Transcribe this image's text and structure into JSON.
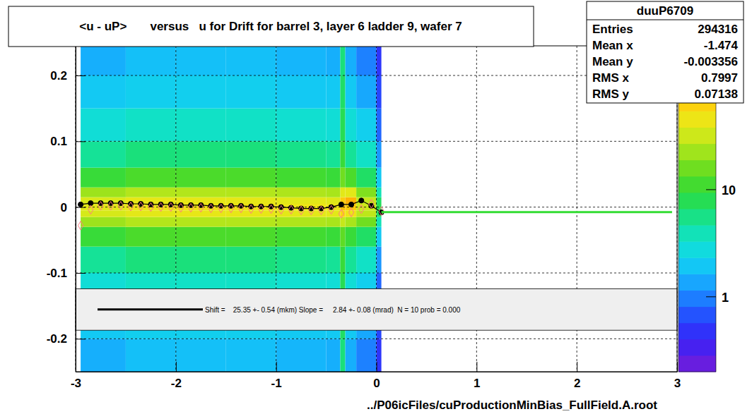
{
  "chart_data": {
    "type": "heatmap",
    "title": "<u - uP>       versus   u for Drift for barrel 3, layer 6 ladder 9, wafer 7",
    "x_label": "../P06icFiles/cuProductionMinBias_FullField.A.root",
    "xlim": [
      -3,
      3
    ],
    "ylim": [
      -0.25,
      0.245
    ],
    "xticks": [
      -3,
      -2,
      -1,
      0,
      1,
      2,
      3
    ],
    "yticks": [
      -0.2,
      -0.1,
      0,
      0.1,
      0.2
    ],
    "grid": true,
    "heatmap": {
      "x_edges": [
        -2.95,
        -2.5,
        -2,
        -1.5,
        -1,
        -0.5,
        -0.36,
        -0.31,
        -0.2,
        0,
        0.05
      ],
      "y_edges": [
        -0.25,
        -0.2,
        -0.15,
        -0.1,
        -0.06,
        -0.03,
        -0.015,
        -0.005,
        0.005,
        0.015,
        0.03,
        0.06,
        0.1,
        0.15,
        0.2,
        0.245
      ],
      "counts": [
        [
          1.5,
          2,
          3,
          5,
          10,
          22,
          35,
          40,
          36,
          22,
          10,
          5,
          3,
          2,
          1.5
        ],
        [
          1.8,
          2.2,
          3.5,
          6,
          12,
          26,
          40,
          46,
          42,
          26,
          12,
          6,
          3.5,
          2.2,
          1.8
        ],
        [
          1.8,
          2.2,
          3.5,
          6,
          12,
          26,
          42,
          48,
          42,
          26,
          12,
          6,
          3.5,
          2.2,
          1.8
        ],
        [
          1.8,
          2.2,
          3.5,
          6,
          12,
          26,
          42,
          48,
          42,
          26,
          12,
          6,
          3.5,
          2.2,
          1.8
        ],
        [
          1.6,
          2,
          3.2,
          5.5,
          11,
          25,
          40,
          46,
          40,
          25,
          11,
          5.5,
          3.2,
          2,
          1.6
        ],
        [
          1.5,
          2,
          3,
          5,
          10,
          24,
          40,
          45,
          38,
          24,
          10,
          5,
          3,
          2,
          1.5
        ],
        [
          6,
          7,
          8,
          10,
          14,
          30,
          60,
          80,
          70,
          40,
          16,
          10,
          8,
          7,
          6
        ],
        [
          1.5,
          2,
          3,
          5,
          10,
          24,
          45,
          70,
          90,
          40,
          12,
          5,
          3,
          2,
          1.5
        ],
        [
          1,
          1.4,
          2.2,
          3.5,
          7,
          16,
          28,
          32,
          30,
          18,
          7,
          3.5,
          2.2,
          1.4,
          1
        ],
        [
          0.5,
          0.6,
          0.8,
          1.2,
          2,
          4,
          7,
          8,
          7,
          4,
          2,
          1.2,
          0.8,
          0.6,
          0.5
        ]
      ],
      "colorbar_range": [
        0.2,
        220
      ],
      "log": true,
      "colorbar_ticks": [
        1,
        10
      ]
    },
    "series": [
      {
        "type": "line",
        "color": "#000000",
        "marker": "circle",
        "line_style": "solid",
        "x": [
          -2.95,
          -2.85,
          -2.75,
          -2.65,
          -2.55,
          -2.45,
          -2.35,
          -2.25,
          -2.15,
          -2.05,
          -1.95,
          -1.85,
          -1.75,
          -1.65,
          -1.55,
          -1.45,
          -1.35,
          -1.25,
          -1.15,
          -1.05,
          -0.95,
          -0.85,
          -0.75,
          -0.65,
          -0.55,
          -0.45,
          -0.35,
          -0.25,
          -0.15,
          -0.05,
          0.05
        ],
        "values": [
          0.004,
          0.006,
          0.006,
          0.006,
          0.006,
          0.005,
          0.005,
          0.004,
          0.004,
          0.004,
          0.003,
          0.003,
          0.003,
          0.002,
          0.002,
          0.002,
          0.002,
          0.001,
          0.001,
          0.001,
          0.0,
          -0.001,
          -0.002,
          -0.002,
          -0.002,
          0.0,
          0.004,
          0.004,
          0.01,
          0.002,
          -0.008
        ]
      },
      {
        "type": "scatter",
        "color": "#ff7f7f",
        "marker": "diamond",
        "x": [
          -2.95,
          -2.85,
          -2.75,
          -2.65,
          -2.55,
          -2.45,
          -2.35,
          -2.25,
          -2.15,
          -2.05,
          -1.95,
          -1.85,
          -1.75,
          -1.65,
          -1.55,
          -1.45,
          -1.35,
          -1.25,
          -1.15,
          -1.05,
          -0.95,
          -0.85,
          -0.75,
          -0.65,
          -0.55,
          -0.45,
          -0.35,
          -0.25,
          -0.15,
          -0.05,
          0.05
        ],
        "values": [
          -0.028,
          -0.004,
          0.002,
          0.002,
          0.002,
          0.001,
          0.001,
          0.0,
          0.0,
          0.0,
          -0.001,
          -0.001,
          -0.001,
          -0.002,
          -0.002,
          -0.002,
          -0.002,
          -0.003,
          -0.003,
          -0.003,
          -0.004,
          -0.004,
          -0.005,
          -0.005,
          -0.005,
          -0.004,
          -0.01,
          -0.008,
          -0.003,
          0.005,
          -0.006
        ]
      },
      {
        "type": "line",
        "color": "#33dd33",
        "line_style": "solid",
        "x": [
          0.05,
          2.95
        ],
        "values": [
          -0.0075,
          -0.0075
        ]
      }
    ],
    "annotation": "Shift =    25.35 +- 0.54 (mkm) Slope =     2.84 +- 0.08 (mrad)  N = 10 prob = 0.000",
    "annotation_band": [
      -0.124,
      -0.187
    ],
    "stats": {
      "title": "duuP6709",
      "rows": [
        [
          "Entries",
          "294316"
        ],
        [
          "Mean x",
          "-1.474"
        ],
        [
          "Mean y",
          "-0.003356"
        ],
        [
          "RMS x",
          "0.7997"
        ],
        [
          "RMS y",
          "0.07138"
        ]
      ]
    }
  }
}
